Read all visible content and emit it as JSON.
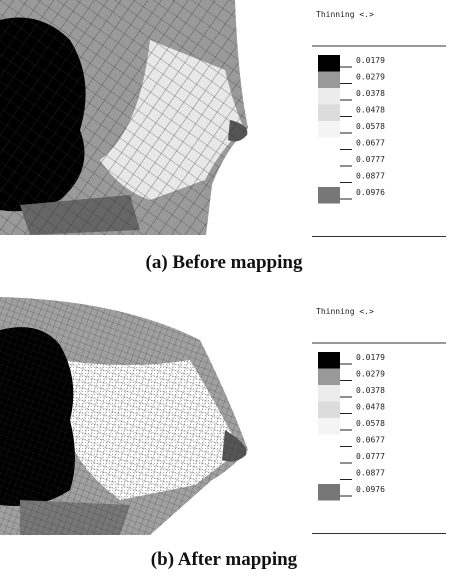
{
  "panels": [
    {
      "legend": {
        "title": "Thinning <.>",
        "labels": [
          "0.0179",
          "0.0279",
          "0.0378",
          "0.0478",
          "0.0578",
          "0.0677",
          "0.0777",
          "0.0877",
          "0.0976"
        ]
      },
      "caption": "(a) Before mapping"
    },
    {
      "legend": {
        "title": "Thinning <.>",
        "labels": [
          "0.0179",
          "0.0279",
          "0.0378",
          "0.0478",
          "0.0578",
          "0.0677",
          "0.0777",
          "0.0877",
          "0.0976"
        ]
      },
      "caption": "(b) After mapping"
    }
  ]
}
